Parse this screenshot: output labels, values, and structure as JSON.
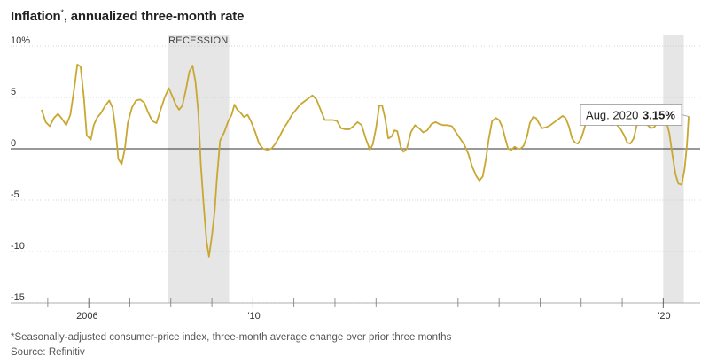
{
  "chart_data": {
    "type": "line",
    "title": "Inflation",
    "title_marker": "*",
    "subtitle": ", annualized three-month rate",
    "x_range": [
      2004.7,
      2020.9
    ],
    "ylim": [
      -15,
      10
    ],
    "y_ticks": [
      {
        "value": 10,
        "label": "10%"
      },
      {
        "value": 5,
        "label": "5"
      },
      {
        "value": 0,
        "label": "0"
      },
      {
        "value": -5,
        "label": "-5"
      },
      {
        "value": -10,
        "label": "-10"
      },
      {
        "value": -15,
        "label": "-15"
      }
    ],
    "x_ticks": [
      {
        "value": 2006,
        "label": "2006"
      },
      {
        "value": 2010,
        "label": "'10"
      },
      {
        "value": 2020,
        "label": "'20"
      }
    ],
    "x_minor_ticks": [
      2005,
      2007,
      2008,
      2009,
      2011,
      2012,
      2013,
      2014,
      2015,
      2016,
      2017,
      2018,
      2019
    ],
    "recessions": [
      {
        "start": 2007.92,
        "end": 2009.42,
        "label": "RECESSION"
      },
      {
        "start": 2020.0,
        "end": 2020.5,
        "label": ""
      }
    ],
    "series": [
      {
        "color": "#c8a832",
        "points": [
          [
            2004.85,
            3.8
          ],
          [
            2004.95,
            2.6
          ],
          [
            2005.05,
            2.2
          ],
          [
            2005.15,
            3.0
          ],
          [
            2005.25,
            3.4
          ],
          [
            2005.35,
            2.9
          ],
          [
            2005.45,
            2.3
          ],
          [
            2005.55,
            3.3
          ],
          [
            2005.65,
            6.0
          ],
          [
            2005.72,
            8.2
          ],
          [
            2005.8,
            8.0
          ],
          [
            2005.88,
            5.0
          ],
          [
            2005.95,
            1.3
          ],
          [
            2006.05,
            0.9
          ],
          [
            2006.12,
            2.3
          ],
          [
            2006.2,
            3.0
          ],
          [
            2006.3,
            3.5
          ],
          [
            2006.4,
            4.2
          ],
          [
            2006.5,
            4.7
          ],
          [
            2006.58,
            4.0
          ],
          [
            2006.65,
            2.0
          ],
          [
            2006.72,
            -1.0
          ],
          [
            2006.8,
            -1.5
          ],
          [
            2006.88,
            0.0
          ],
          [
            2006.95,
            2.5
          ],
          [
            2007.05,
            4.0
          ],
          [
            2007.15,
            4.7
          ],
          [
            2007.25,
            4.8
          ],
          [
            2007.35,
            4.5
          ],
          [
            2007.45,
            3.5
          ],
          [
            2007.55,
            2.7
          ],
          [
            2007.65,
            2.5
          ],
          [
            2007.75,
            3.8
          ],
          [
            2007.85,
            5.0
          ],
          [
            2007.95,
            5.9
          ],
          [
            2008.05,
            5.0
          ],
          [
            2008.12,
            4.3
          ],
          [
            2008.2,
            3.8
          ],
          [
            2008.28,
            4.2
          ],
          [
            2008.37,
            5.8
          ],
          [
            2008.45,
            7.5
          ],
          [
            2008.53,
            8.1
          ],
          [
            2008.6,
            6.5
          ],
          [
            2008.67,
            3.5
          ],
          [
            2008.73,
            -1.5
          ],
          [
            2008.8,
            -5.5
          ],
          [
            2008.87,
            -9.0
          ],
          [
            2008.93,
            -10.5
          ],
          [
            2009.0,
            -8.5
          ],
          [
            2009.07,
            -6.0
          ],
          [
            2009.12,
            -3.0
          ],
          [
            2009.2,
            0.8
          ],
          [
            2009.3,
            1.6
          ],
          [
            2009.4,
            2.7
          ],
          [
            2009.48,
            3.3
          ],
          [
            2009.55,
            4.3
          ],
          [
            2009.62,
            3.8
          ],
          [
            2009.7,
            3.5
          ],
          [
            2009.78,
            3.1
          ],
          [
            2009.87,
            3.3
          ],
          [
            2009.95,
            2.7
          ],
          [
            2010.05,
            1.7
          ],
          [
            2010.15,
            0.5
          ],
          [
            2010.25,
            0.0
          ],
          [
            2010.35,
            -0.1
          ],
          [
            2010.45,
            0.0
          ],
          [
            2010.55,
            0.5
          ],
          [
            2010.65,
            1.2
          ],
          [
            2010.75,
            2.0
          ],
          [
            2010.85,
            2.6
          ],
          [
            2010.95,
            3.3
          ],
          [
            2011.05,
            3.8
          ],
          [
            2011.15,
            4.3
          ],
          [
            2011.25,
            4.6
          ],
          [
            2011.35,
            4.9
          ],
          [
            2011.45,
            5.2
          ],
          [
            2011.55,
            4.8
          ],
          [
            2011.65,
            3.8
          ],
          [
            2011.75,
            2.8
          ],
          [
            2011.85,
            2.8
          ],
          [
            2011.95,
            2.8
          ],
          [
            2012.05,
            2.7
          ],
          [
            2012.15,
            2.0
          ],
          [
            2012.25,
            1.9
          ],
          [
            2012.35,
            1.9
          ],
          [
            2012.45,
            2.2
          ],
          [
            2012.55,
            2.6
          ],
          [
            2012.65,
            2.3
          ],
          [
            2012.75,
            1.0
          ],
          [
            2012.85,
            -0.1
          ],
          [
            2012.92,
            0.4
          ],
          [
            2013.0,
            2.0
          ],
          [
            2013.08,
            4.2
          ],
          [
            2013.15,
            4.2
          ],
          [
            2013.22,
            3.0
          ],
          [
            2013.3,
            1.0
          ],
          [
            2013.38,
            1.2
          ],
          [
            2013.45,
            1.8
          ],
          [
            2013.52,
            1.7
          ],
          [
            2013.6,
            0.2
          ],
          [
            2013.67,
            -0.3
          ],
          [
            2013.75,
            0.0
          ],
          [
            2013.85,
            1.6
          ],
          [
            2013.95,
            2.3
          ],
          [
            2014.05,
            2.0
          ],
          [
            2014.15,
            1.6
          ],
          [
            2014.25,
            1.8
          ],
          [
            2014.35,
            2.4
          ],
          [
            2014.45,
            2.6
          ],
          [
            2014.55,
            2.4
          ],
          [
            2014.65,
            2.3
          ],
          [
            2014.75,
            2.3
          ],
          [
            2014.85,
            2.2
          ],
          [
            2014.95,
            1.6
          ],
          [
            2015.05,
            1.0
          ],
          [
            2015.15,
            0.4
          ],
          [
            2015.25,
            -0.5
          ],
          [
            2015.35,
            -1.8
          ],
          [
            2015.45,
            -2.7
          ],
          [
            2015.52,
            -3.1
          ],
          [
            2015.6,
            -2.7
          ],
          [
            2015.68,
            -1.0
          ],
          [
            2015.75,
            1.0
          ],
          [
            2015.83,
            2.7
          ],
          [
            2015.92,
            3.0
          ],
          [
            2016.0,
            2.8
          ],
          [
            2016.08,
            2.1
          ],
          [
            2016.15,
            1.0
          ],
          [
            2016.22,
            0.0
          ],
          [
            2016.3,
            -0.1
          ],
          [
            2016.38,
            0.2
          ],
          [
            2016.45,
            0.0
          ],
          [
            2016.52,
            0.0
          ],
          [
            2016.6,
            0.3
          ],
          [
            2016.68,
            1.2
          ],
          [
            2016.75,
            2.5
          ],
          [
            2016.83,
            3.1
          ],
          [
            2016.9,
            3.0
          ],
          [
            2016.97,
            2.5
          ],
          [
            2017.05,
            2.0
          ],
          [
            2017.15,
            2.1
          ],
          [
            2017.25,
            2.3
          ],
          [
            2017.35,
            2.6
          ],
          [
            2017.45,
            2.9
          ],
          [
            2017.55,
            3.2
          ],
          [
            2017.62,
            3.0
          ],
          [
            2017.7,
            2.2
          ],
          [
            2017.78,
            1.0
          ],
          [
            2017.85,
            0.6
          ],
          [
            2017.92,
            0.5
          ],
          [
            2018.0,
            1.0
          ],
          [
            2018.08,
            2.0
          ],
          [
            2018.15,
            3.2
          ],
          [
            2018.25,
            3.6
          ],
          [
            2018.35,
            3.3
          ],
          [
            2018.45,
            2.8
          ],
          [
            2018.55,
            2.5
          ],
          [
            2018.65,
            2.4
          ],
          [
            2018.75,
            2.3
          ],
          [
            2018.85,
            2.4
          ],
          [
            2018.95,
            2.0
          ],
          [
            2019.05,
            1.3
          ],
          [
            2019.12,
            0.6
          ],
          [
            2019.2,
            0.5
          ],
          [
            2019.28,
            1.0
          ],
          [
            2019.35,
            2.2
          ],
          [
            2019.45,
            3.0
          ],
          [
            2019.55,
            2.8
          ],
          [
            2019.62,
            2.3
          ],
          [
            2019.7,
            2.0
          ],
          [
            2019.78,
            2.1
          ],
          [
            2019.85,
            2.5
          ],
          [
            2019.92,
            3.0
          ],
          [
            2020.0,
            3.1
          ],
          [
            2020.08,
            2.6
          ],
          [
            2020.15,
            1.5
          ],
          [
            2020.22,
            -0.5
          ],
          [
            2020.3,
            -2.5
          ],
          [
            2020.37,
            -3.4
          ],
          [
            2020.45,
            -3.5
          ],
          [
            2020.52,
            -2.0
          ],
          [
            2020.58,
            0.5
          ],
          [
            2020.62,
            3.15
          ]
        ]
      }
    ],
    "callout": {
      "date_label": "Aug. 2020",
      "value_label": "3.15%",
      "x": 2020.62,
      "y": 3.15
    }
  },
  "footnote": "*Seasonally-adjusted consumer-price index, three-month average change over prior three months",
  "source": "Source: Refinitiv",
  "colors": {
    "line": "#c8a832",
    "recession": "#e6e6e6",
    "zero_line": "#333333",
    "grid": "#c8c8c8"
  }
}
